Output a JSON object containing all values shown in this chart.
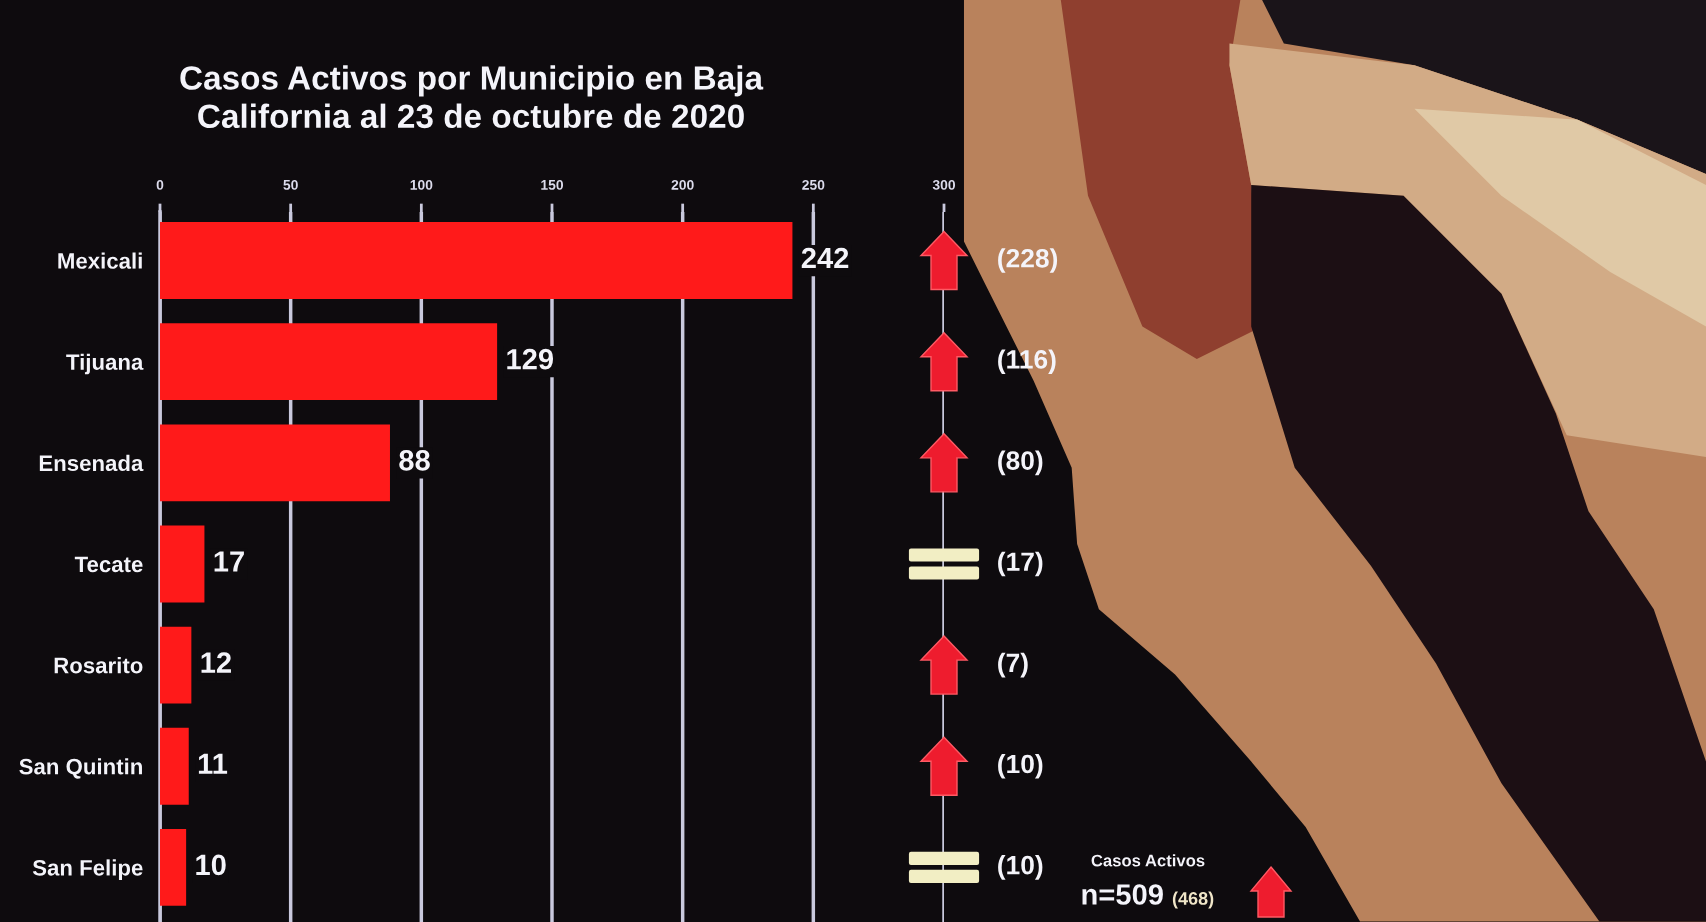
{
  "chart_data": {
    "type": "bar",
    "orientation": "horizontal",
    "title": "Casos Activos por Municipio en Baja\nCalifornia al 23 de octubre de 2020",
    "categories": [
      "Mexicali",
      "Tijuana",
      "Ensenada",
      "Tecate",
      "Rosarito",
      "San Quintin",
      "San Felipe"
    ],
    "values": [
      242,
      129,
      88,
      17,
      12,
      11,
      10
    ],
    "color": "#ff1a1a",
    "xlim": [
      0,
      300
    ],
    "xticks": [
      0,
      50,
      100,
      150,
      200,
      250,
      300
    ],
    "grid": "x",
    "data_labels": true,
    "annotations": [
      "(228)",
      "(116)",
      "(80)",
      "(17)",
      "(7)",
      "(10)",
      "(10)",
      "Casos Activos",
      "n=509",
      "(468)"
    ]
  }
}
